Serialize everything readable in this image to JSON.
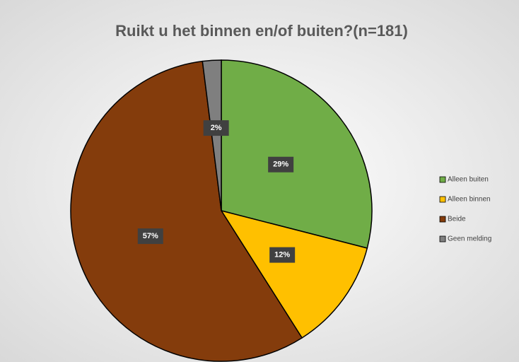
{
  "chart_data": {
    "type": "pie",
    "title": "Ruikt u het binnen en/of buiten?(n=181)",
    "categories": [
      "Alleen buiten",
      "Alleen binnen",
      "Beide",
      "Geen melding"
    ],
    "values": [
      29,
      12,
      57,
      2
    ],
    "value_labels": [
      "29%",
      "12%",
      "57%",
      "2%"
    ],
    "colors": [
      "#70ad47",
      "#ffc000",
      "#843c0c",
      "#7f7f7f"
    ],
    "legend": "right"
  }
}
